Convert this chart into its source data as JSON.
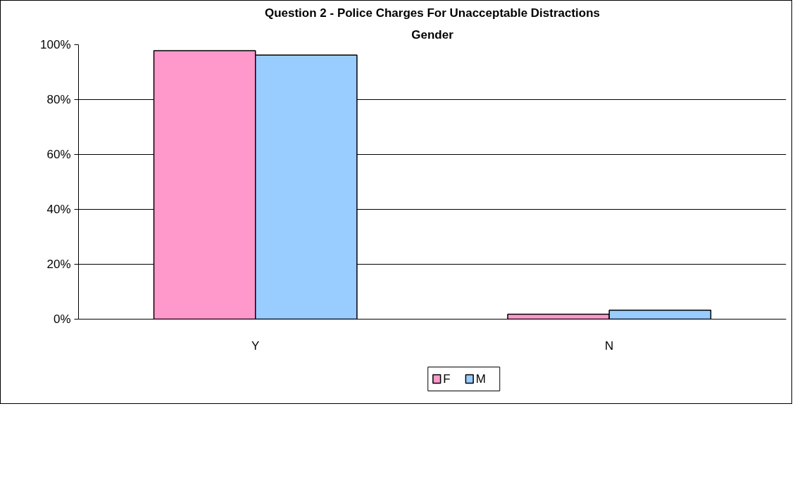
{
  "chart_data": {
    "type": "bar",
    "title": "Question 2 - Police Charges For Unacceptable Distractions",
    "subtitle": "Gender",
    "categories": [
      "Y",
      "N"
    ],
    "series": [
      {
        "name": "F",
        "color": "#ff99cc",
        "values": [
          97.8,
          1.8
        ]
      },
      {
        "name": "M",
        "color": "#99ccff",
        "values": [
          96.2,
          3.3
        ]
      }
    ],
    "ylim": [
      0,
      100
    ],
    "yticks": [
      {
        "value": 0,
        "label": "0%"
      },
      {
        "value": 20,
        "label": "20%"
      },
      {
        "value": 40,
        "label": "40%"
      },
      {
        "value": 60,
        "label": "60%"
      },
      {
        "value": 80,
        "label": "80%"
      },
      {
        "value": 100,
        "label": "100%"
      }
    ],
    "grid": "y",
    "legend": "bottom"
  }
}
